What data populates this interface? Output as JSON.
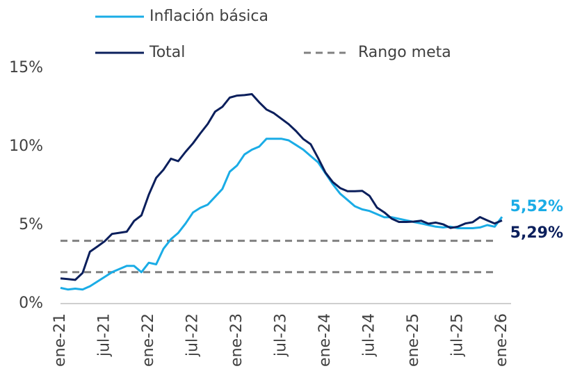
{
  "chart_data": {
    "type": "line",
    "categories": [
      "ene-21",
      null,
      null,
      null,
      null,
      null,
      "jul-21",
      null,
      null,
      null,
      null,
      null,
      "ene-22",
      null,
      null,
      null,
      null,
      null,
      "jul-22",
      null,
      null,
      null,
      null,
      null,
      "ene-23",
      null,
      null,
      null,
      null,
      null,
      "jul-23",
      null,
      null,
      null,
      null,
      null,
      "ene-24",
      null,
      null,
      null,
      null,
      null,
      "jul-24",
      null,
      null,
      null,
      null,
      null,
      "ene-25",
      null,
      null,
      null,
      null,
      null,
      "jul-25",
      null,
      null,
      null,
      null,
      null,
      "ene-26"
    ],
    "series": [
      {
        "name": "Inflación básica",
        "color": "#1aace6",
        "values": [
          1.0,
          0.9,
          0.95,
          0.9,
          1.1,
          1.4,
          1.7,
          2.0,
          2.2,
          2.4,
          2.4,
          2.0,
          2.6,
          2.5,
          3.5,
          4.1,
          4.5,
          5.1,
          5.8,
          6.1,
          6.3,
          6.8,
          7.3,
          8.4,
          8.8,
          9.5,
          9.8,
          10.0,
          10.5,
          10.5,
          10.5,
          10.4,
          10.1,
          9.8,
          9.4,
          9.0,
          8.3,
          7.6,
          7.0,
          6.6,
          6.2,
          6.0,
          5.9,
          5.7,
          5.5,
          5.5,
          5.4,
          5.3,
          5.2,
          5.1,
          5.0,
          4.9,
          4.85,
          4.9,
          4.8,
          4.8,
          4.8,
          4.85,
          5.0,
          4.9,
          5.52
        ],
        "value_labels": [
          null,
          null,
          null,
          null,
          null,
          null,
          null,
          null,
          null,
          null,
          null,
          null,
          null,
          null,
          null,
          null,
          null,
          null,
          null,
          null,
          null,
          null,
          null,
          null,
          null,
          null,
          null,
          null,
          null,
          null,
          null,
          null,
          null,
          null,
          null,
          null,
          null,
          null,
          null,
          null,
          null,
          null,
          null,
          null,
          null,
          null,
          null,
          null,
          null,
          null,
          null,
          null,
          null,
          null,
          null,
          null,
          null,
          null,
          null,
          null,
          "5,52%"
        ]
      },
      {
        "name": "Total",
        "color": "#0b1f5c",
        "values": [
          1.6,
          1.56,
          1.51,
          1.95,
          3.3,
          3.63,
          3.97,
          4.44,
          4.51,
          4.58,
          5.26,
          5.62,
          6.94,
          8.01,
          8.53,
          9.23,
          9.07,
          9.67,
          10.21,
          10.84,
          11.44,
          12.22,
          12.53,
          13.12,
          13.25,
          13.28,
          13.34,
          12.82,
          12.36,
          12.13,
          11.78,
          11.43,
          10.99,
          10.48,
          10.15,
          9.28,
          8.35,
          7.74,
          7.36,
          7.16,
          7.16,
          7.18,
          6.86,
          6.12,
          5.81,
          5.41,
          5.2,
          5.2,
          5.22,
          5.28,
          5.09,
          5.16,
          5.05,
          4.82,
          4.9,
          5.1,
          5.18,
          5.51,
          5.3,
          5.1,
          5.29
        ],
        "value_labels": [
          null,
          null,
          null,
          null,
          null,
          null,
          null,
          null,
          null,
          null,
          null,
          null,
          null,
          null,
          null,
          null,
          null,
          null,
          null,
          null,
          null,
          null,
          null,
          null,
          null,
          null,
          null,
          null,
          null,
          null,
          null,
          null,
          null,
          null,
          null,
          null,
          null,
          null,
          null,
          null,
          null,
          null,
          null,
          null,
          null,
          null,
          null,
          null,
          null,
          null,
          null,
          null,
          null,
          null,
          null,
          null,
          null,
          null,
          null,
          null,
          "5,29%"
        ]
      }
    ],
    "target_range": {
      "name": "Rango meta",
      "color": "#808080",
      "values": [
        2,
        4
      ]
    },
    "ylim": [
      0,
      15
    ],
    "yticks": [
      {
        "value": 0,
        "label": "0%"
      },
      {
        "value": 5,
        "label": "5%"
      },
      {
        "value": 10,
        "label": "10%"
      },
      {
        "value": 15,
        "label": "15%"
      }
    ]
  }
}
